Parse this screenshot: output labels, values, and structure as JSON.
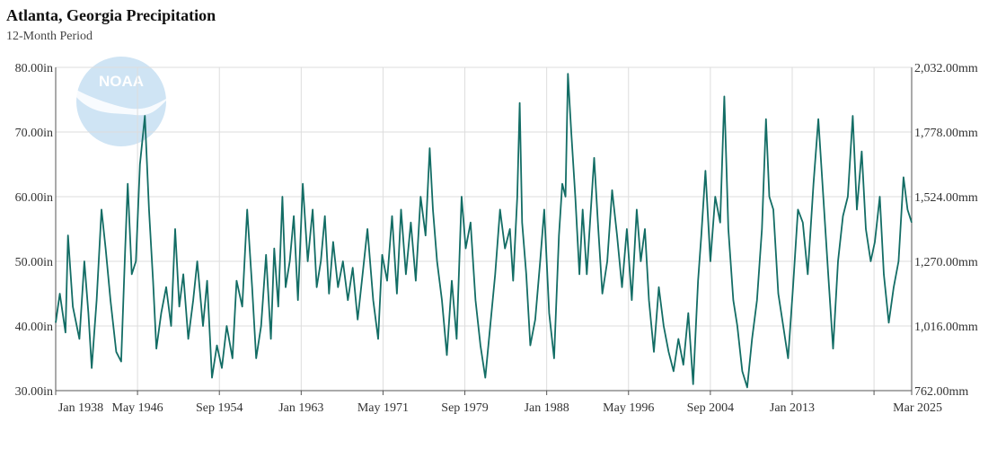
{
  "header": {
    "title": "Atlanta, Georgia Precipitation",
    "subtitle": "12-Month Period"
  },
  "logo": {
    "text": "NOAA",
    "color": "#cfe4f4"
  },
  "colors": {
    "series": "#136d65",
    "grid": "#dddddd"
  },
  "chart_data": {
    "type": "line",
    "title": "Atlanta, Georgia Precipitation",
    "subtitle": "12-Month Period",
    "x_start": "Jan 1938",
    "x_end": "Mar 2025",
    "x_ticks": [
      "Jan 1938",
      "May 1946",
      "Sep 1954",
      "Jan 1963",
      "May 1971",
      "Sep 1979",
      "Jan 1988",
      "May 1996",
      "Sep 2004",
      "Jan 2013",
      "Mar 2025"
    ],
    "ylim": [
      30,
      80
    ],
    "y_ticks_left": [
      "30.00in",
      "40.00in",
      "50.00in",
      "60.00in",
      "70.00in",
      "80.00in"
    ],
    "ylim_right": [
      762,
      2032
    ],
    "y_ticks_right": [
      "762.00mm",
      "1,016.00mm",
      "1,270.00mm",
      "1,524.00mm",
      "1,778.00mm",
      "2,032.00mm"
    ],
    "grid": true,
    "series": [
      {
        "color": "#136d65",
        "points": [
          [
            "1938-01",
            40.5
          ],
          [
            "1938-06",
            45
          ],
          [
            "1939-01",
            39
          ],
          [
            "1939-04",
            54
          ],
          [
            "1939-10",
            43
          ],
          [
            "1940-06",
            38
          ],
          [
            "1940-12",
            50
          ],
          [
            "1941-05",
            42
          ],
          [
            "1941-09",
            33.5
          ],
          [
            "1942-03",
            44
          ],
          [
            "1942-09",
            58
          ],
          [
            "1943-02",
            52
          ],
          [
            "1943-08",
            44
          ],
          [
            "1944-03",
            36
          ],
          [
            "1944-09",
            34.5
          ],
          [
            "1945-02",
            52
          ],
          [
            "1945-05",
            62
          ],
          [
            "1945-10",
            48
          ],
          [
            "1946-03",
            50
          ],
          [
            "1946-08",
            65
          ],
          [
            "1947-02",
            72.5
          ],
          [
            "1947-07",
            58
          ],
          [
            "1947-12",
            47
          ],
          [
            "1948-04",
            36.5
          ],
          [
            "1948-10",
            42
          ],
          [
            "1949-04",
            46
          ],
          [
            "1949-10",
            40
          ],
          [
            "1950-03",
            55
          ],
          [
            "1950-08",
            43
          ],
          [
            "1951-01",
            48
          ],
          [
            "1951-07",
            38
          ],
          [
            "1952-01",
            44
          ],
          [
            "1952-06",
            50
          ],
          [
            "1953-01",
            40
          ],
          [
            "1953-06",
            47
          ],
          [
            "1953-12",
            32
          ],
          [
            "1954-06",
            37
          ],
          [
            "1954-12",
            33.5
          ],
          [
            "1955-06",
            40
          ],
          [
            "1956-01",
            35
          ],
          [
            "1956-06",
            47
          ],
          [
            "1957-01",
            43
          ],
          [
            "1957-07",
            58
          ],
          [
            "1958-01",
            46
          ],
          [
            "1958-06",
            35
          ],
          [
            "1958-12",
            40
          ],
          [
            "1959-06",
            51
          ],
          [
            "1959-12",
            38
          ],
          [
            "1960-04",
            52
          ],
          [
            "1960-09",
            43
          ],
          [
            "1961-02",
            60
          ],
          [
            "1961-06",
            46
          ],
          [
            "1961-11",
            50
          ],
          [
            "1962-04",
            57
          ],
          [
            "1962-09",
            44
          ],
          [
            "1963-03",
            62
          ],
          [
            "1963-09",
            50
          ],
          [
            "1964-03",
            58
          ],
          [
            "1964-08",
            46
          ],
          [
            "1965-01",
            50
          ],
          [
            "1965-06",
            57
          ],
          [
            "1965-11",
            45
          ],
          [
            "1966-04",
            53
          ],
          [
            "1966-10",
            46
          ],
          [
            "1967-04",
            50
          ],
          [
            "1967-10",
            44
          ],
          [
            "1968-04",
            49
          ],
          [
            "1968-10",
            41
          ],
          [
            "1969-04",
            48
          ],
          [
            "1969-10",
            55
          ],
          [
            "1970-05",
            44
          ],
          [
            "1970-11",
            38
          ],
          [
            "1971-04",
            51
          ],
          [
            "1971-10",
            47
          ],
          [
            "1972-04",
            57
          ],
          [
            "1972-10",
            45
          ],
          [
            "1973-03",
            58
          ],
          [
            "1973-09",
            48
          ],
          [
            "1974-03",
            56
          ],
          [
            "1974-09",
            47
          ],
          [
            "1975-03",
            60
          ],
          [
            "1975-09",
            54
          ],
          [
            "1976-02",
            67.5
          ],
          [
            "1976-06",
            58
          ],
          [
            "1976-11",
            50
          ],
          [
            "1977-05",
            44
          ],
          [
            "1977-11",
            35.5
          ],
          [
            "1978-05",
            47
          ],
          [
            "1978-11",
            38
          ],
          [
            "1979-05",
            60
          ],
          [
            "1979-10",
            52
          ],
          [
            "1980-04",
            56
          ],
          [
            "1980-10",
            44
          ],
          [
            "1981-04",
            37
          ],
          [
            "1981-10",
            32
          ],
          [
            "1982-04",
            40
          ],
          [
            "1982-10",
            48
          ],
          [
            "1983-04",
            58
          ],
          [
            "1983-10",
            52
          ],
          [
            "1984-04",
            55
          ],
          [
            "1984-08",
            47
          ],
          [
            "1985-01",
            60
          ],
          [
            "1985-04",
            74.5
          ],
          [
            "1985-07",
            56
          ],
          [
            "1985-12",
            48
          ],
          [
            "1986-05",
            37
          ],
          [
            "1986-11",
            41
          ],
          [
            "1987-05",
            50
          ],
          [
            "1987-10",
            58
          ],
          [
            "1988-04",
            42
          ],
          [
            "1988-10",
            35
          ],
          [
            "1989-04",
            54
          ],
          [
            "1989-08",
            62
          ],
          [
            "1989-12",
            60
          ],
          [
            "1990-03",
            79
          ],
          [
            "1990-07",
            70
          ],
          [
            "1990-12",
            60
          ],
          [
            "1991-05",
            48
          ],
          [
            "1991-09",
            58
          ],
          [
            "1992-02",
            48
          ],
          [
            "1992-06",
            56
          ],
          [
            "1992-11",
            66
          ],
          [
            "1993-04",
            55
          ],
          [
            "1993-09",
            45
          ],
          [
            "1994-03",
            50
          ],
          [
            "1994-09",
            61
          ],
          [
            "1995-03",
            54
          ],
          [
            "1995-09",
            46
          ],
          [
            "1996-03",
            55
          ],
          [
            "1996-09",
            44
          ],
          [
            "1997-03",
            58
          ],
          [
            "1997-08",
            50
          ],
          [
            "1998-01",
            55
          ],
          [
            "1998-06",
            44
          ],
          [
            "1998-12",
            36
          ],
          [
            "1999-06",
            46
          ],
          [
            "1999-12",
            40
          ],
          [
            "2000-06",
            36
          ],
          [
            "2000-12",
            33
          ],
          [
            "2001-06",
            38
          ],
          [
            "2001-12",
            34
          ],
          [
            "2002-06",
            42
          ],
          [
            "2002-12",
            31
          ],
          [
            "2003-06",
            47
          ],
          [
            "2003-10",
            54
          ],
          [
            "2004-03",
            64
          ],
          [
            "2004-09",
            50
          ],
          [
            "2005-03",
            60
          ],
          [
            "2005-09",
            56
          ],
          [
            "2006-02",
            75.5
          ],
          [
            "2006-07",
            55
          ],
          [
            "2007-01",
            44
          ],
          [
            "2007-06",
            40
          ],
          [
            "2007-12",
            33
          ],
          [
            "2008-06",
            30.5
          ],
          [
            "2008-12",
            38
          ],
          [
            "2009-06",
            44
          ],
          [
            "2009-12",
            55
          ],
          [
            "2010-05",
            72
          ],
          [
            "2010-09",
            60
          ],
          [
            "2011-02",
            58
          ],
          [
            "2011-08",
            45
          ],
          [
            "2012-02",
            40
          ],
          [
            "2012-08",
            35
          ],
          [
            "2013-02",
            46
          ],
          [
            "2013-08",
            58
          ],
          [
            "2014-02",
            56
          ],
          [
            "2014-08",
            48
          ],
          [
            "2015-03",
            62
          ],
          [
            "2015-09",
            72
          ],
          [
            "2016-03",
            60
          ],
          [
            "2016-09",
            48
          ],
          [
            "2017-03",
            36.5
          ],
          [
            "2017-09",
            50
          ],
          [
            "2018-03",
            57
          ],
          [
            "2018-09",
            60
          ],
          [
            "2019-03",
            72.5
          ],
          [
            "2019-08",
            58
          ],
          [
            "2020-02",
            67
          ],
          [
            "2020-07",
            55
          ],
          [
            "2021-01",
            50
          ],
          [
            "2021-06",
            53
          ],
          [
            "2021-12",
            60
          ],
          [
            "2022-05",
            48
          ],
          [
            "2022-11",
            40.5
          ],
          [
            "2023-05",
            46
          ],
          [
            "2023-11",
            50
          ],
          [
            "2024-05",
            63
          ],
          [
            "2024-10",
            58
          ],
          [
            "2025-03",
            56
          ]
        ]
      }
    ]
  }
}
